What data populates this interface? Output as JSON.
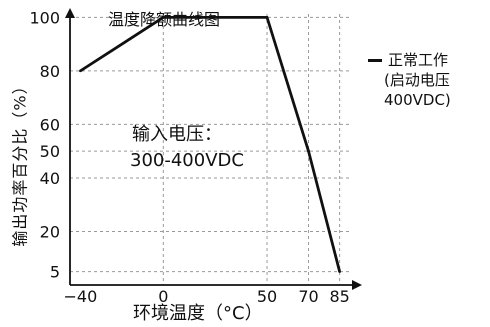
{
  "chart_data": {
    "type": "line",
    "title": "温度降额曲线图",
    "xlabel": "环境温度（°C）",
    "ylabel": "输出功率百分比（%）",
    "x_ticks": [
      -40,
      0,
      50,
      70,
      85
    ],
    "x_tick_labels": [
      "−40",
      "0",
      "50",
      "70",
      "85"
    ],
    "y_ticks": [
      5,
      20,
      40,
      50,
      60,
      80,
      100
    ],
    "y_tick_labels": [
      "5",
      "20",
      "40",
      "50",
      "60",
      "80",
      "100"
    ],
    "xlim": [
      -45,
      90
    ],
    "ylim": [
      0,
      102
    ],
    "grid": "dashed",
    "series": [
      {
        "name": "正常工作",
        "color": "#111111",
        "x": [
          -40,
          0,
          50,
          70,
          85
        ],
        "y": [
          80,
          100,
          100,
          50,
          5
        ]
      }
    ],
    "legend": {
      "placement": "right",
      "line1": "正常工作",
      "line2": "(启动电压",
      "line3": "400VDC)"
    },
    "annotation": {
      "line1": "输入电压：",
      "line2": "300-400VDC"
    }
  }
}
